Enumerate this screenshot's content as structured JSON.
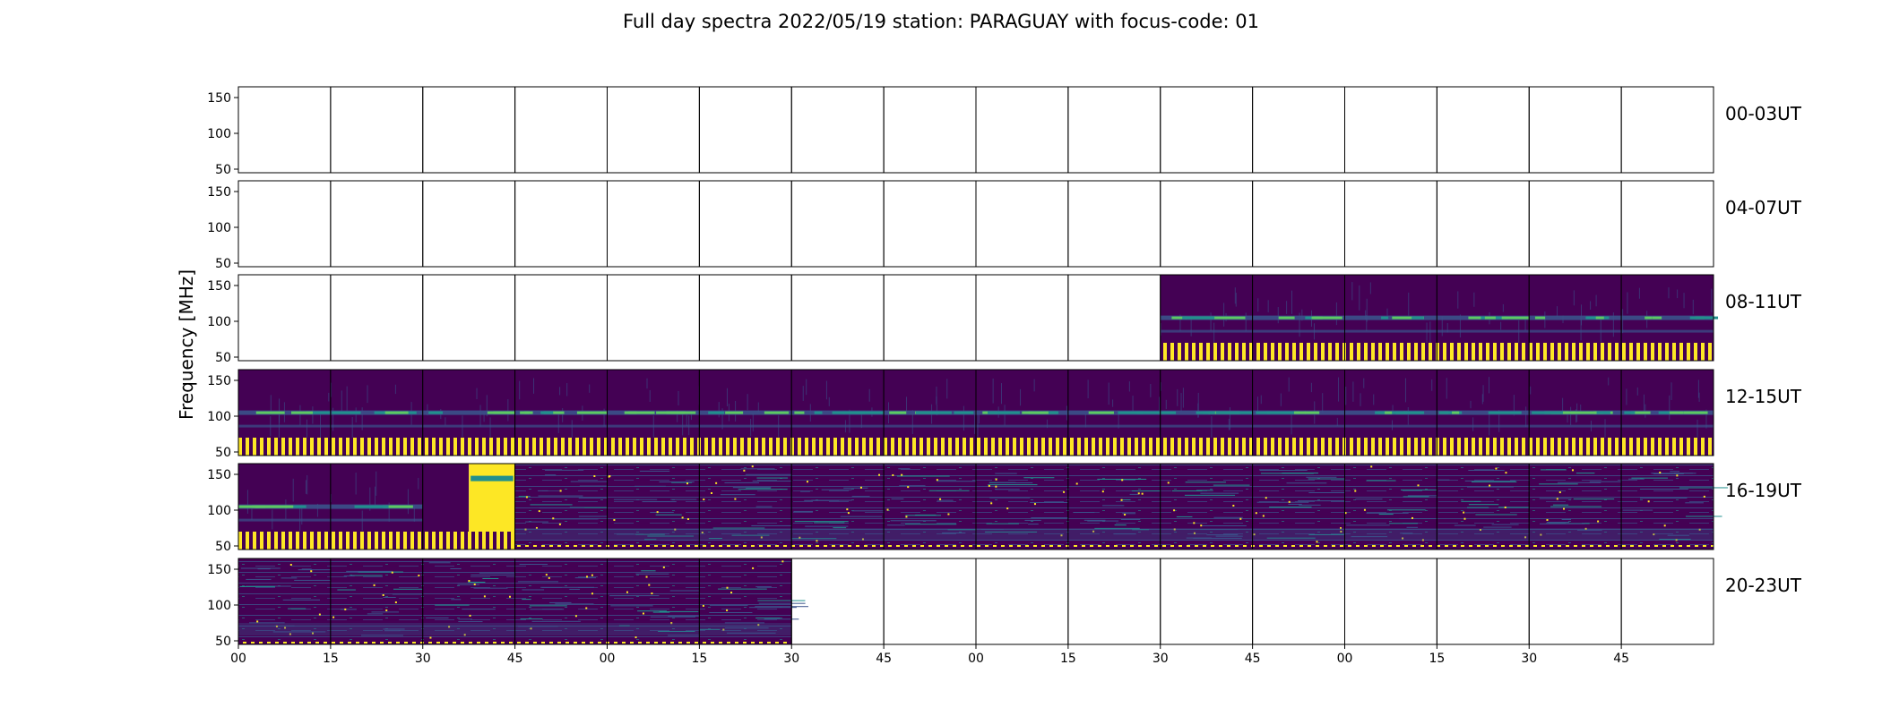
{
  "chart_data": {
    "type": "heatmap",
    "title": "Full day spectra 2022/05/19 station: PARAGUAY with focus-code: 01",
    "ylabel": "Frequency [MHz]",
    "xlabel": "",
    "ylim": [
      45,
      165
    ],
    "yticks": [
      50,
      100,
      150
    ],
    "xtick_labels": [
      "00",
      "15",
      "30",
      "45",
      "00",
      "15",
      "30",
      "45",
      "00",
      "15",
      "30",
      "45",
      "00",
      "15",
      "30",
      "45"
    ],
    "rows": [
      {
        "label": "00-03UT",
        "panels": [
          "empty",
          "empty",
          "empty",
          "empty",
          "empty",
          "empty",
          "empty",
          "empty",
          "empty",
          "empty",
          "empty",
          "empty",
          "empty",
          "empty",
          "empty",
          "empty"
        ]
      },
      {
        "label": "04-07UT",
        "panels": [
          "empty",
          "empty",
          "empty",
          "empty",
          "empty",
          "empty",
          "empty",
          "empty",
          "empty",
          "empty",
          "empty",
          "empty",
          "empty",
          "empty",
          "empty",
          "empty"
        ]
      },
      {
        "label": "08-11UT",
        "panels": [
          "empty",
          "empty",
          "empty",
          "empty",
          "empty",
          "empty",
          "empty",
          "empty",
          "empty",
          "empty",
          "calib",
          "calib",
          "calib",
          "calib",
          "calib",
          "calib"
        ]
      },
      {
        "label": "12-15UT",
        "panels": [
          "calib",
          "calib",
          "calib",
          "calib",
          "calib",
          "calib",
          "calib",
          "calib",
          "calib",
          "calib",
          "calib",
          "calib",
          "calib",
          "calib",
          "calib",
          "calib"
        ]
      },
      {
        "label": "16-19UT",
        "panels": [
          "calib",
          "calib",
          "saturated",
          "noisy",
          "noisy",
          "noisy",
          "noisy",
          "noisy",
          "noisy",
          "noisy",
          "noisy",
          "noisy",
          "noisy",
          "noisy",
          "noisy",
          "noisy"
        ]
      },
      {
        "label": "20-23UT",
        "panels": [
          "noisy",
          "noisy",
          "noisy",
          "noisy",
          "noisy",
          "noisy",
          "empty",
          "empty",
          "empty",
          "empty",
          "empty",
          "empty",
          "empty",
          "empty",
          "empty",
          "empty"
        ]
      }
    ],
    "colormap": [
      "#440154",
      "#3b528b",
      "#21908d",
      "#5dc963",
      "#fde725"
    ]
  }
}
